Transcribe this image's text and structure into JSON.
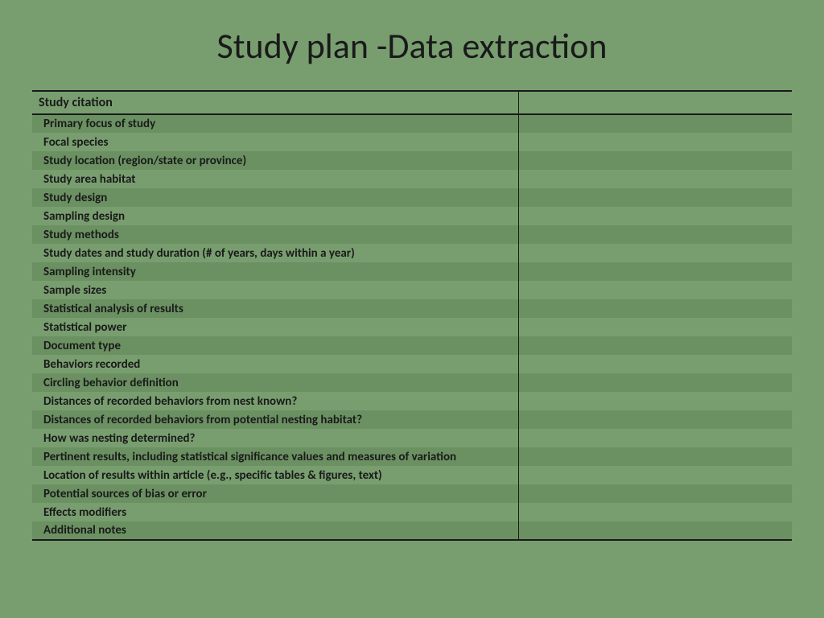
{
  "slide": {
    "title": "Study plan -Data extraction",
    "background_color": "#789e6f",
    "shade_color": "#6b9162",
    "text_color": "#1a1a1a",
    "border_color": "#1a1a1a",
    "title_fontsize": 44,
    "row_fontsize": 15,
    "header_fontsize": 16,
    "col1_width_pct": 64,
    "col2_width_pct": 36
  },
  "table": {
    "header": {
      "col1": "Study citation",
      "col2": ""
    },
    "rows": [
      {
        "label": "Primary focus of study",
        "value": "",
        "shaded": true
      },
      {
        "label": "Focal species",
        "value": "",
        "shaded": false
      },
      {
        "label": "Study location (region/state or province)",
        "value": "",
        "shaded": true
      },
      {
        "label": "Study area habitat",
        "value": "",
        "shaded": false
      },
      {
        "label": "Study design",
        "value": "",
        "shaded": true
      },
      {
        "label": "Sampling design",
        "value": "",
        "shaded": false
      },
      {
        "label": "Study methods",
        "value": "",
        "shaded": true
      },
      {
        "label": "Study dates and study duration (# of years, days within a year)",
        "value": "",
        "shaded": false
      },
      {
        "label": "Sampling intensity",
        "value": "",
        "shaded": true
      },
      {
        "label": "Sample sizes",
        "value": "",
        "shaded": false
      },
      {
        "label": "Statistical analysis of results",
        "value": "",
        "shaded": true
      },
      {
        "label": "Statistical power",
        "value": "",
        "shaded": false
      },
      {
        "label": "Document type",
        "value": "",
        "shaded": true
      },
      {
        "label": "Behaviors recorded",
        "value": "",
        "shaded": false
      },
      {
        "label": "Circling behavior definition",
        "value": "",
        "shaded": true
      },
      {
        "label": "Distances of recorded behaviors from nest known?",
        "value": "",
        "shaded": false
      },
      {
        "label": "Distances of recorded behaviors from potential nesting habitat?",
        "value": "",
        "shaded": true
      },
      {
        "label": "How was nesting determined?",
        "value": "",
        "shaded": false
      },
      {
        "label": "Pertinent results, including statistical significance values and measures of variation",
        "value": "",
        "shaded": true
      },
      {
        "label": "Location of results within article (e.g., specific tables & figures, text)",
        "value": "",
        "shaded": false
      },
      {
        "label": "Potential sources of bias or error",
        "value": "",
        "shaded": true
      },
      {
        "label": "Effects modifiers",
        "value": "",
        "shaded": false
      },
      {
        "label": "Additional notes",
        "value": "",
        "shaded": true
      }
    ]
  }
}
